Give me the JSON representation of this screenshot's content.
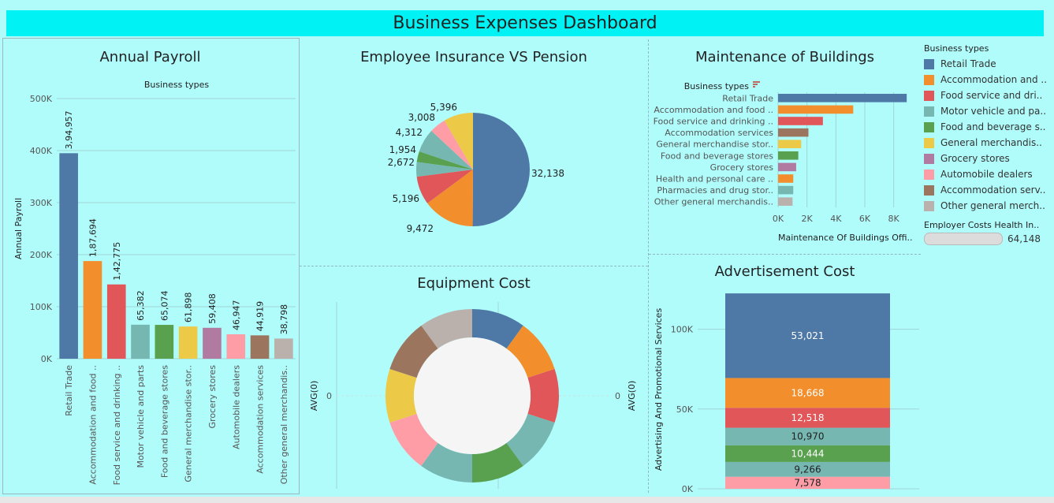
{
  "title": "Business Expenses Dashboard",
  "colors": [
    "#4e79a7",
    "#f28e2b",
    "#e15759",
    "#76b7b2",
    "#59a14f",
    "#edc948",
    "#b07aa1",
    "#ff9da7",
    "#9c755f",
    "#bab0ac"
  ],
  "legend": {
    "title": "Business types",
    "items": [
      "Retail Trade",
      "Accommodation and ..",
      "Food service and dri..",
      "Motor vehicle and pa..",
      "Food and beverage s..",
      "General merchandis..",
      "Grocery stores",
      "Automobile dealers",
      "Accommodation serv..",
      "Other general merch.."
    ],
    "extra_title": "Employer Costs Health In..",
    "extra_value": "64,148"
  },
  "chart_data": [
    {
      "type": "bar",
      "title": "Annual Payroll",
      "legend_title": "Business types",
      "ylabel": "Annual Payroll",
      "ylim": [
        0,
        500000
      ],
      "yticks": [
        0,
        100000,
        200000,
        300000,
        400000,
        500000
      ],
      "ytick_labels": [
        "0K",
        "100K",
        "200K",
        "300K",
        "400K",
        "500K"
      ],
      "categories": [
        "Retail Trade",
        "Accommodation and food ..",
        "Food service and drinking ..",
        "Motor vehicle and parts",
        "Food and beverage stores",
        "General merchandise stor..",
        "Grocery stores",
        "Automobile dealers",
        "Accommodation services",
        "Other general merchandis.."
      ],
      "values": [
        394957,
        187694,
        142775,
        65382,
        65074,
        61898,
        59408,
        46947,
        44919,
        38798
      ],
      "labels": [
        "3,94,957",
        "1,87,694",
        "1,42,775",
        "65,382",
        "65,074",
        "61,898",
        "59,408",
        "46,947",
        "44,919",
        "38,798"
      ]
    },
    {
      "type": "pie",
      "title": "Employee  Insurance VS Pension",
      "values": [
        32138,
        9472,
        5196,
        2672,
        1954,
        4312,
        3008,
        5396
      ],
      "labels": [
        "32,138",
        "9,472",
        "5,196",
        "2,672",
        "1,954",
        "4,312",
        "3,008",
        "5,396"
      ],
      "color_index": [
        0,
        1,
        2,
        3,
        4,
        3,
        7,
        5
      ]
    },
    {
      "type": "bar",
      "orientation": "horizontal",
      "title": "Maintenance of Buildings",
      "legend_title": "Business types",
      "xlabel": "Maintenance Of Buildings Offi..",
      "xlim": [
        0,
        9600
      ],
      "xticks": [
        0,
        2000,
        4000,
        6000,
        8000
      ],
      "xtick_labels": [
        "0K",
        "2K",
        "4K",
        "6K",
        "8K"
      ],
      "categories": [
        "Retail Trade",
        "Accommodation and food ..",
        "Food service and drinking ..",
        "Accommodation services",
        "General merchandise stor..",
        "Food and beverage stores",
        "Grocery stores",
        "Health and personal care ..",
        "Pharmacies and drug stor..",
        "Other general merchandis.."
      ],
      "values": [
        8900,
        5200,
        3100,
        2100,
        1600,
        1400,
        1250,
        1050,
        1050,
        1000
      ],
      "color_index": [
        0,
        1,
        2,
        8,
        5,
        4,
        6,
        1,
        3,
        9
      ]
    },
    {
      "type": "pie",
      "subtype": "donut",
      "title": "Equipment Cost",
      "ylabel": "AVG(0)",
      "y2label": "AVG(0)",
      "tick_label": "0",
      "values": [
        1,
        1,
        1,
        1,
        1,
        1,
        1,
        1,
        1,
        1
      ],
      "color_index": [
        0,
        1,
        2,
        3,
        4,
        3,
        7,
        5,
        8,
        9
      ]
    },
    {
      "type": "bar",
      "subtype": "stacked",
      "title": "Advertisement  Cost",
      "ylabel": "Advertising And Promotional Services",
      "ylim": [
        0,
        125000
      ],
      "yticks": [
        0,
        50000,
        100000
      ],
      "ytick_labels": [
        "0K",
        "50K",
        "100K"
      ],
      "values": [
        53021,
        18668,
        12518,
        10970,
        10444,
        9266,
        7578
      ],
      "labels": [
        "53,021",
        "18,668",
        "12,518",
        "10,970",
        "10,444",
        "9,266",
        "7,578"
      ],
      "color_index": [
        0,
        1,
        2,
        3,
        4,
        3,
        7
      ]
    }
  ]
}
